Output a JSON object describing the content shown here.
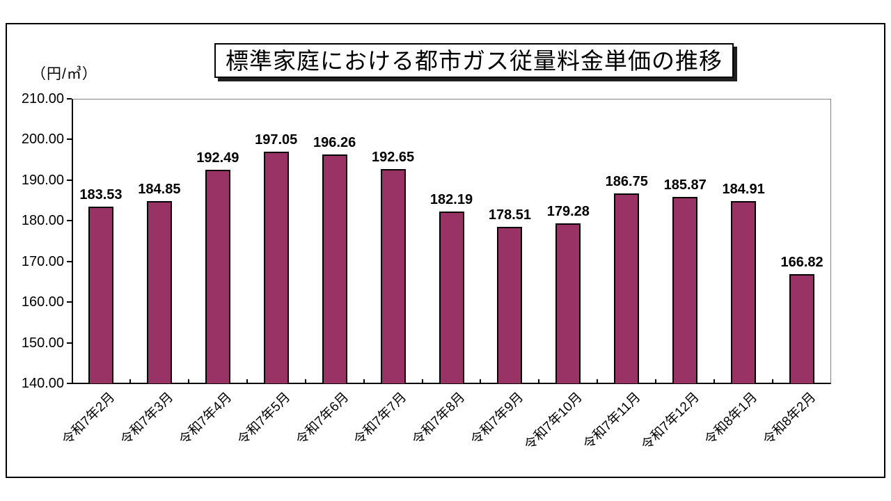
{
  "chart_data": {
    "type": "bar",
    "title": "標準家庭における都市ガス従量料金単価の推移",
    "unit_label": "（円/㎥）",
    "categories": [
      "令和7年2月",
      "令和7年3月",
      "令和7年4月",
      "令和7年5月",
      "令和7年6月",
      "令和7年7月",
      "令和7年8月",
      "令和7年9月",
      "令和7年10月",
      "令和7年11月",
      "令和7年12月",
      "令和8年1月",
      "令和8年2月"
    ],
    "values": [
      183.53,
      184.85,
      192.49,
      197.05,
      196.26,
      192.65,
      182.19,
      178.51,
      179.28,
      186.75,
      185.87,
      184.91,
      166.82
    ],
    "value_labels": [
      "183.53",
      "184.85",
      "192.49",
      "197.05",
      "196.26",
      "192.65",
      "182.19",
      "178.51",
      "179.28",
      "186.75",
      "185.87",
      "184.91",
      "166.82"
    ],
    "ylim": [
      140,
      210
    ],
    "ytick_step": 10,
    "ytick_labels": [
      "140.00",
      "150.00",
      "160.00",
      "170.00",
      "180.00",
      "190.00",
      "200.00",
      "210.00"
    ],
    "xlabel": "",
    "ylabel": "",
    "grid": false,
    "legend": "none",
    "bar_color": "#993366",
    "bar_border_color": "#000000",
    "plot_border_color": "#848484",
    "axis_color": "#000000"
  }
}
